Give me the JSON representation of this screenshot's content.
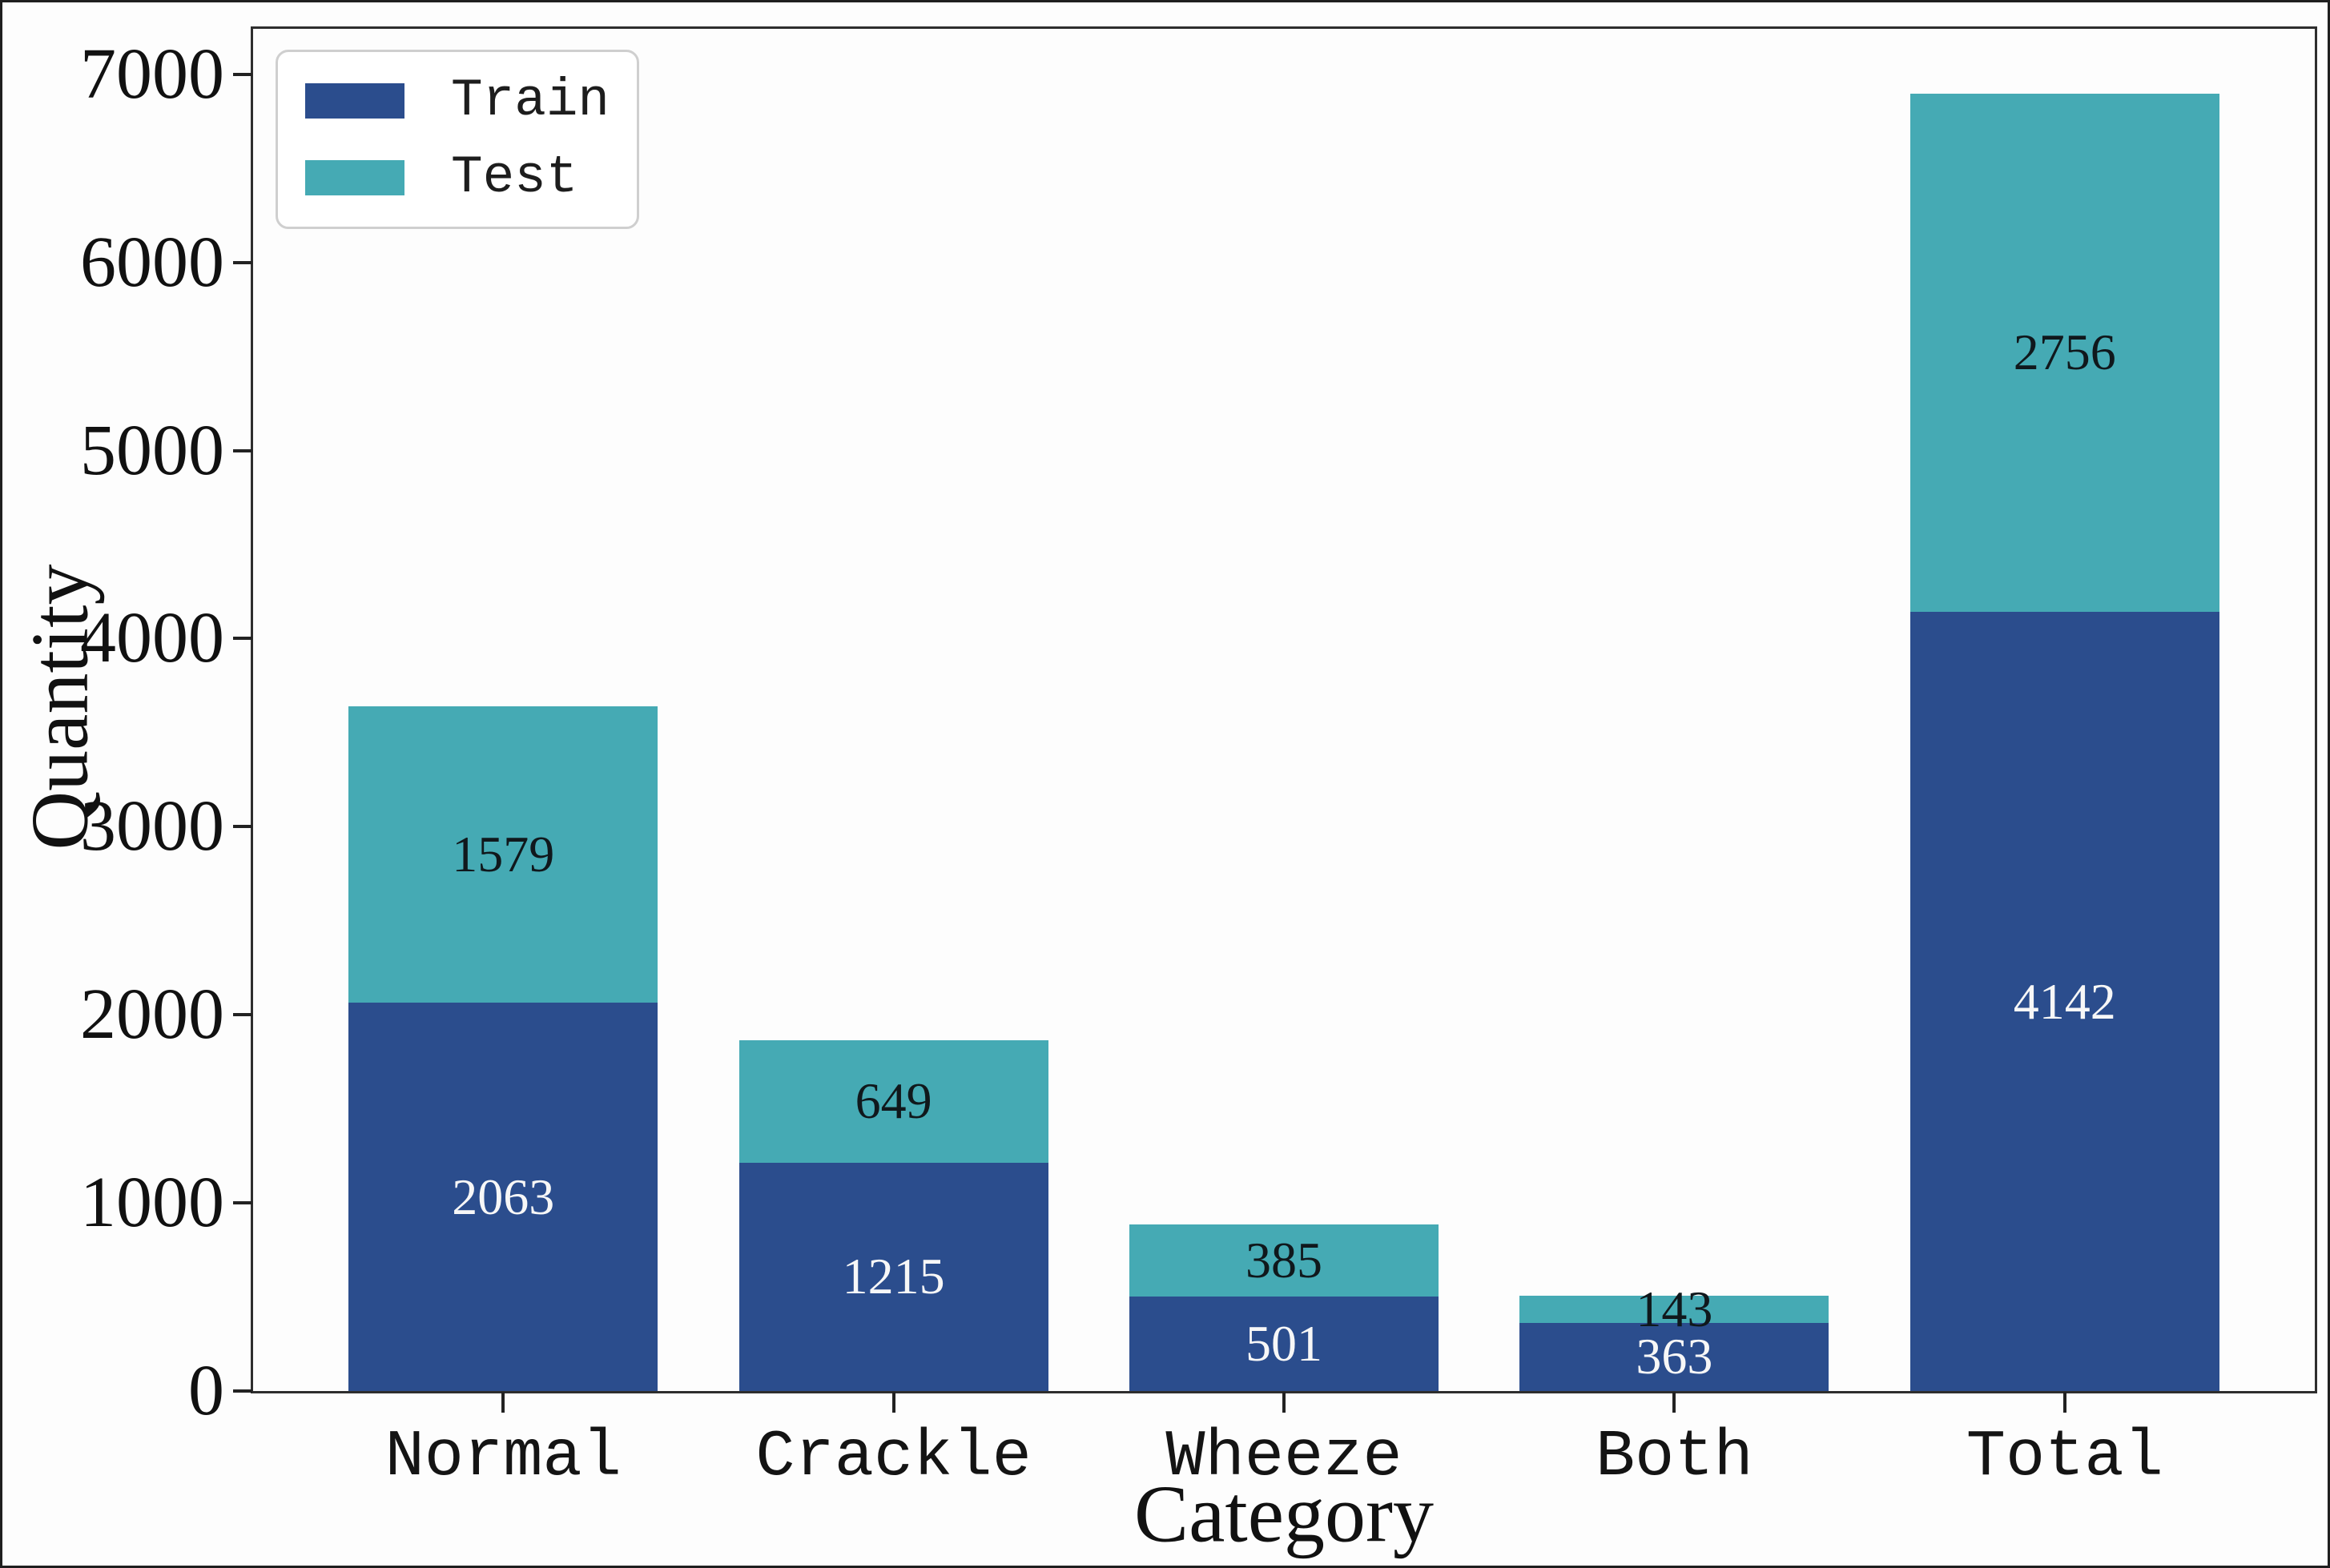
{
  "chart_data": {
    "type": "bar",
    "stacked": true,
    "title": "",
    "xlabel": "Category",
    "ylabel": "Quantity",
    "categories": [
      "Normal",
      "Crackle",
      "Wheeze",
      "Both",
      "Total"
    ],
    "series": [
      {
        "name": "Train",
        "color": "#2b4d8d",
        "label_color": "#f7f7f7",
        "values": [
          2063,
          1215,
          501,
          363,
          4142
        ]
      },
      {
        "name": "Test",
        "color": "#45aab4",
        "label_color": "#10181c",
        "values": [
          1579,
          649,
          385,
          143,
          2756
        ]
      }
    ],
    "yticks": [
      0,
      1000,
      2000,
      3000,
      4000,
      5000,
      6000,
      7000
    ],
    "ylim": [
      0,
      7242
    ],
    "grid": false,
    "bar_value_labels": true,
    "legend_position": "upper left"
  }
}
